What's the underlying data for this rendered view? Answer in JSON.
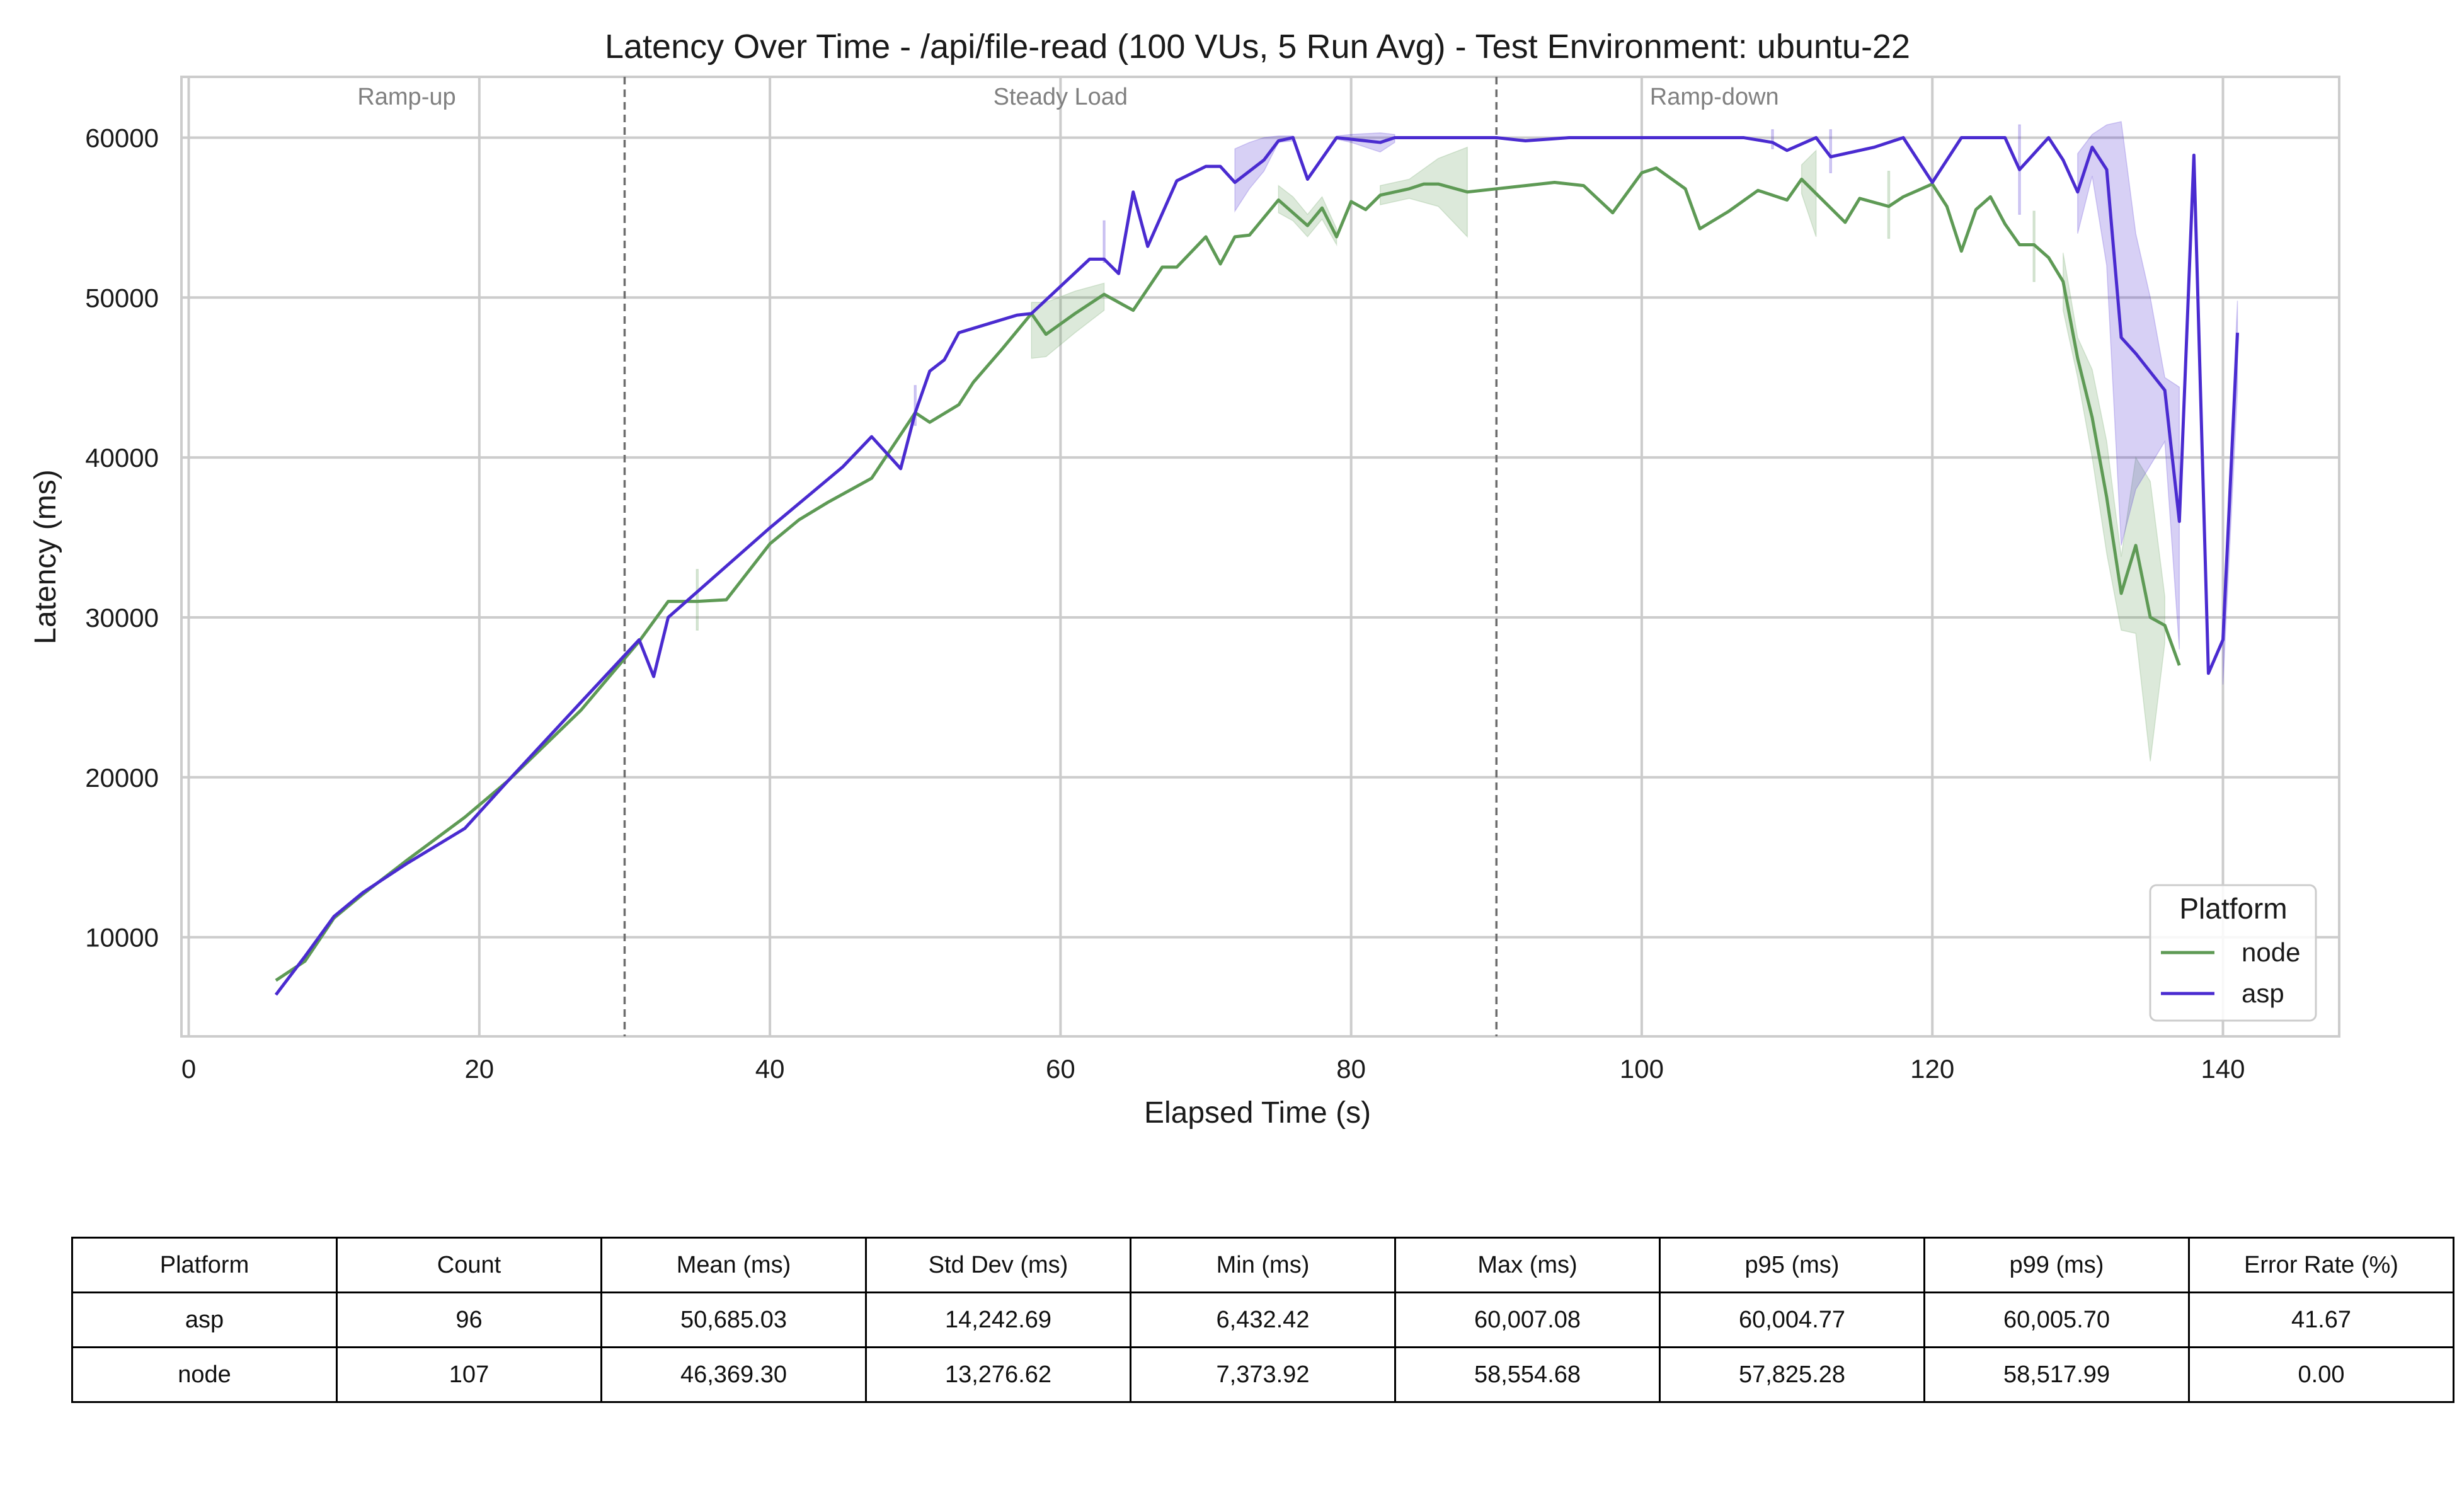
{
  "chart_data": {
    "type": "line",
    "title": "Latency Over Time - /api/file-read (100 VUs, 5 Run Avg) - Test Environment: ubuntu-22",
    "xlabel": "Elapsed Time (s)",
    "ylabel": "Latency (ms)",
    "xlim": [
      -0.5,
      148
    ],
    "ylim": [
      3800,
      63800
    ],
    "xticks": [
      0,
      20,
      40,
      60,
      80,
      100,
      120,
      140
    ],
    "yticks": [
      10000,
      20000,
      30000,
      40000,
      50000,
      60000
    ],
    "grid": true,
    "legend": {
      "title": "Platform",
      "position": "lower-right"
    },
    "phases": [
      {
        "label": "Ramp-up",
        "x": 15
      },
      {
        "label": "Steady Load",
        "x": 60
      },
      {
        "label": "Ramp-down",
        "x": 105
      }
    ],
    "phase_boundaries": [
      30,
      90
    ],
    "series": [
      {
        "name": "node",
        "color": "#5e9a55",
        "x": [
          6,
          8,
          10,
          12,
          15,
          19,
          22,
          27,
          31,
          33,
          35,
          37,
          40,
          42,
          44,
          47,
          50,
          51,
          53,
          54,
          56,
          58,
          59,
          61,
          63,
          65,
          67,
          68,
          70,
          71,
          72,
          73,
          75,
          77,
          78,
          79,
          80,
          81,
          82,
          84,
          85,
          86,
          88,
          90,
          92,
          94,
          96,
          98,
          100,
          101,
          103,
          104,
          106,
          108,
          110,
          111,
          112,
          114,
          115,
          117,
          118,
          120,
          121,
          122,
          123,
          124,
          125,
          126,
          127,
          128,
          129,
          130,
          131,
          132,
          133,
          134,
          135,
          136,
          137
        ],
        "y": [
          7300,
          8500,
          11200,
          12700,
          14800,
          17500,
          19800,
          24200,
          28500,
          31000,
          31000,
          31100,
          34600,
          36100,
          37200,
          38700,
          42800,
          42200,
          43300,
          44700,
          46800,
          49000,
          47700,
          49000,
          50200,
          49200,
          51900,
          51900,
          53800,
          52100,
          53800,
          53900,
          56100,
          54500,
          55600,
          53800,
          56000,
          55500,
          56400,
          56800,
          57100,
          57100,
          56600,
          56800,
          57000,
          57200,
          57000,
          55300,
          57800,
          58100,
          56800,
          54300,
          55400,
          56700,
          56100,
          57400,
          56500,
          54700,
          56200,
          55700,
          56300,
          57100,
          55700,
          52900,
          55500,
          56300,
          54600,
          53300,
          53300,
          52500,
          51000,
          46200,
          42500,
          37500,
          31500,
          34500,
          30000,
          29500,
          27000
        ],
        "band_segments": [
          {
            "x": [
              35,
              35
            ],
            "lo": [
              29200,
              29200
            ],
            "hi": [
              33000,
              33000
            ]
          },
          {
            "x": [
              58,
              59,
              61,
              63
            ],
            "lo": [
              46200,
              46300,
              47800,
              49200
            ],
            "hi": [
              49700,
              49700,
              50400,
              50900
            ]
          },
          {
            "x": [
              75,
              76,
              77,
              78,
              79
            ],
            "lo": [
              55300,
              54800,
              53800,
              54900,
              53300
            ],
            "hi": [
              57000,
              56300,
              55200,
              56300,
              54300
            ]
          },
          {
            "x": [
              82,
              84,
              86,
              88
            ],
            "lo": [
              55800,
              56200,
              55700,
              53800
            ],
            "hi": [
              57000,
              57400,
              58700,
              59400
            ]
          },
          {
            "x": [
              111,
              112
            ],
            "lo": [
              56500,
              53800
            ],
            "hi": [
              58300,
              59200
            ]
          },
          {
            "x": [
              117,
              117
            ],
            "lo": [
              53700,
              53700
            ],
            "hi": [
              57900,
              57900
            ]
          },
          {
            "x": [
              127,
              127
            ],
            "lo": [
              51000,
              51000
            ],
            "hi": [
              55400,
              55400
            ]
          },
          {
            "x": [
              129,
              130,
              131,
              132,
              133,
              134,
              135,
              136
            ],
            "lo": [
              49200,
              45000,
              40000,
              34000,
              29200,
              29000,
              21000,
              28400
            ],
            "hi": [
              52800,
              47500,
              45500,
              41000,
              33800,
              40000,
              38500,
              31300
            ]
          }
        ]
      },
      {
        "name": "asp",
        "color": "#4a2bd0",
        "x": [
          6,
          8,
          10,
          12,
          15,
          19,
          22,
          27,
          31,
          32,
          33,
          35,
          40,
          45,
          47,
          49,
          50,
          51,
          52,
          53,
          57,
          58,
          60,
          62,
          63,
          64,
          65,
          66,
          68,
          70,
          71,
          72,
          74,
          75,
          76,
          77,
          79,
          80,
          82,
          83,
          85,
          87,
          90,
          92,
          95,
          100,
          105,
          107,
          109,
          110,
          112,
          113,
          116,
          118,
          120,
          122,
          124,
          125,
          126,
          128,
          129,
          130,
          131,
          132,
          133,
          134,
          136,
          137,
          138,
          139,
          140,
          141
        ],
        "y": [
          6400,
          8800,
          11300,
          12800,
          14600,
          16800,
          19800,
          24700,
          28600,
          26300,
          30000,
          31600,
          35600,
          39400,
          41300,
          39300,
          42800,
          45400,
          46100,
          47800,
          48900,
          49000,
          50700,
          52400,
          52400,
          51500,
          56600,
          53200,
          57300,
          58200,
          58200,
          57200,
          58600,
          59800,
          60000,
          57400,
          60000,
          59900,
          59700,
          60000,
          60000,
          60000,
          60000,
          59800,
          60000,
          60000,
          60000,
          60000,
          59700,
          59200,
          60000,
          58800,
          59400,
          60000,
          57200,
          60000,
          60000,
          60000,
          58000,
          60000,
          58600,
          56600,
          59400,
          58000,
          47500,
          46500,
          44200,
          36000,
          58900,
          26500,
          28600,
          47800
        ],
        "band_segments": [
          {
            "x": [
              50,
              50
            ],
            "lo": [
              42000,
              42000
            ],
            "hi": [
              44500,
              44500
            ]
          },
          {
            "x": [
              63,
              63
            ],
            "lo": [
              52200,
              52200
            ],
            "hi": [
              54800,
              54800
            ]
          },
          {
            "x": [
              72,
              73,
              74,
              75,
              76
            ],
            "lo": [
              55400,
              56800,
              57900,
              59700,
              59800
            ],
            "hi": [
              59300,
              59700,
              60000,
              60100,
              60100
            ]
          },
          {
            "x": [
              79,
              80,
              82,
              83
            ],
            "lo": [
              59900,
              59700,
              59100,
              59700
            ],
            "hi": [
              60100,
              60200,
              60300,
              60200
            ]
          },
          {
            "x": [
              109,
              109
            ],
            "lo": [
              59300,
              59300
            ],
            "hi": [
              60500,
              60500
            ]
          },
          {
            "x": [
              113,
              113
            ],
            "lo": [
              57800,
              57800
            ],
            "hi": [
              60500,
              60500
            ]
          },
          {
            "x": [
              126,
              126
            ],
            "lo": [
              55200,
              55200
            ],
            "hi": [
              60800,
              60800
            ]
          },
          {
            "x": [
              130,
              131,
              132,
              133,
              134,
              135,
              136,
              137
            ],
            "lo": [
              54000,
              57600,
              52000,
              34500,
              38000,
              39500,
              41000,
              28000
            ],
            "hi": [
              59000,
              60200,
              60800,
              61000,
              54000,
              50000,
              45000,
              44400
            ]
          },
          {
            "x": [
              140,
              141
            ],
            "lo": [
              25800,
              44200
            ],
            "hi": [
              29400,
              49800
            ]
          }
        ]
      }
    ]
  },
  "stats_table": {
    "headers": [
      "Platform",
      "Count",
      "Mean (ms)",
      "Std Dev (ms)",
      "Min (ms)",
      "Max (ms)",
      "p95 (ms)",
      "p99 (ms)",
      "Error Rate (%)"
    ],
    "rows": [
      [
        "asp",
        "96",
        "50,685.03",
        "14,242.69",
        "6,432.42",
        "60,007.08",
        "60,004.77",
        "60,005.70",
        "41.67"
      ],
      [
        "node",
        "107",
        "46,369.30",
        "13,276.62",
        "7,373.92",
        "58,554.68",
        "57,825.28",
        "58,517.99",
        "0.00"
      ]
    ]
  }
}
